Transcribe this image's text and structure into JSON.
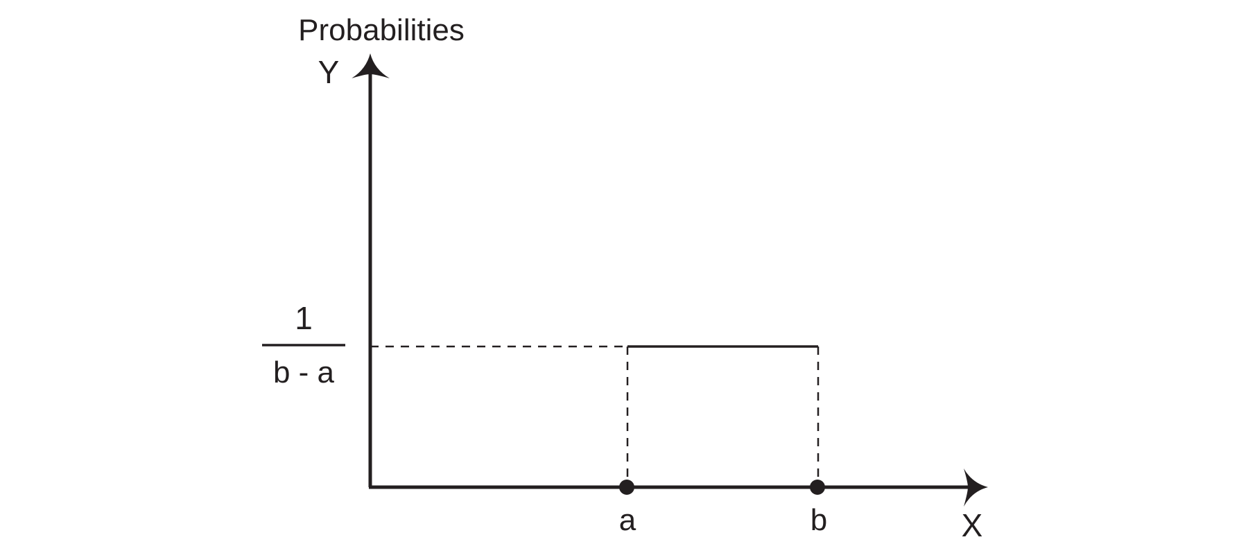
{
  "chart_data": {
    "type": "line",
    "title": "",
    "ylabel": "Probabilities",
    "y_axis_letter": "Y",
    "x_axis_letter": "X",
    "x_markers": [
      {
        "label": "a"
      },
      {
        "label": "b"
      }
    ],
    "y_marker": {
      "numerator": "1",
      "denominator": "b - a"
    },
    "series": [
      {
        "points": [
          {
            "x": "a",
            "y": "1/(b - a)"
          },
          {
            "x": "b",
            "y": "1/(b - a)"
          }
        ]
      }
    ],
    "grid": false,
    "legend": "none",
    "colors": {
      "ink": "#231f20",
      "background": "#ffffff"
    }
  }
}
